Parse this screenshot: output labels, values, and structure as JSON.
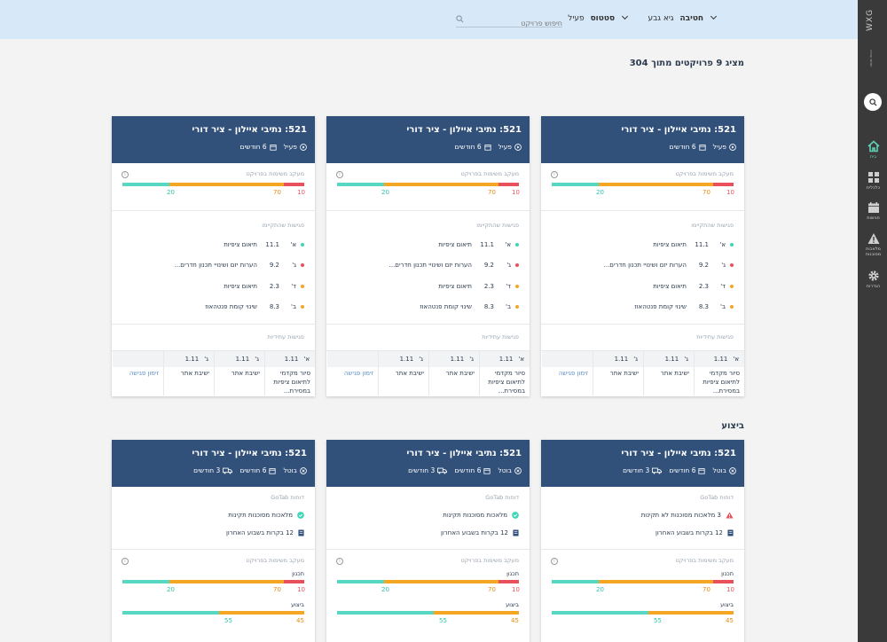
{
  "topbar": {
    "filters": [
      {
        "label": "חטיבה",
        "value": "גיא גבע"
      },
      {
        "label": "סטטוס",
        "value": "פעיל"
      }
    ],
    "search_placeholder": "חיפוש פרויקט"
  },
  "sidebar": {
    "logo": "WXG",
    "logo_sub": "יזמות ובנייה",
    "items": [
      {
        "label": "בית",
        "icon": "home-icon"
      },
      {
        "label": "כלכלית",
        "icon": "grid-icon"
      },
      {
        "label": "פגישות",
        "icon": "calendar-icon"
      },
      {
        "label": "מלאכות מסוכנות",
        "icon": "warning-icon"
      },
      {
        "label": "הגדרות",
        "icon": "gear-icon"
      }
    ]
  },
  "summary": "מציג 9 פרויקטים מתוך 304",
  "section_execution": "ביצוע",
  "card": {
    "title": "521: נתיבי איילון - ציר דורי",
    "status_active": "פעיל",
    "status_cancel": "בוטל",
    "duration": "6 חודשים",
    "duration2": "3 חודשים",
    "tasks_label": "מעקב משימות בפרויקט",
    "meetings_label": "פגישות שהתקיימו",
    "future_label": "פגישות עתידיות",
    "bar_values": {
      "green": "20",
      "orange": "70",
      "red": "10"
    },
    "meetings": [
      {
        "day": "א'",
        "date": "11.1",
        "text": "תיאום ציפיות",
        "color": "#3ed6b5"
      },
      {
        "day": "ג'",
        "date": "9.2",
        "text": "הערות יזם ושינויי תכנון חדרים...",
        "color": "#e8505b"
      },
      {
        "day": "ד'",
        "date": "2.3",
        "text": "תיאום ציפיות",
        "color": "#f5a623"
      },
      {
        "day": "ב'",
        "date": "8.3",
        "text": "שינוי קומת פנטהאוז",
        "color": "#f5a623"
      }
    ],
    "future": [
      {
        "day": "א'",
        "date": "1.11",
        "text": "סיור מקדמי לתיאום ציפיות במסירת..."
      },
      {
        "day": "ג'",
        "date": "1.11",
        "text": "ישיבת אתר"
      },
      {
        "day": "ג'",
        "date": "1.11",
        "text": "ישיבת אתר"
      },
      {
        "day": "",
        "date": "",
        "text": "זימון פגישה"
      }
    ],
    "gotab_label": "דוחות GoTab",
    "rep_ok": "מלאכות מסוכנות תקינות",
    "rep_bad": "3 מלאכות מסוכנות לא תקינות",
    "rep_checks": "12 בקרות בשבוע האחרון",
    "plan_label": "תכנון",
    "exec_label": "ביצוע",
    "exec_values": {
      "green": "55",
      "orange": "45"
    }
  }
}
